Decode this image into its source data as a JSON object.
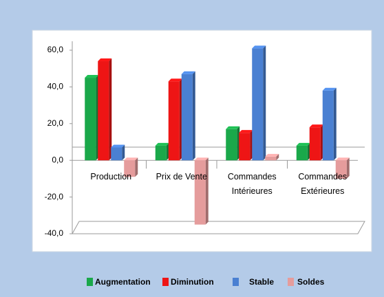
{
  "chart_data": {
    "type": "bar",
    "categories": [
      "Production",
      "Prix de Vente",
      "Commandes Intérieures",
      "Commandes Extérieures"
    ],
    "series": [
      {
        "name": "Augmentation",
        "color": "#1aa84a",
        "values": [
          45,
          8,
          17,
          8
        ]
      },
      {
        "name": "Diminution",
        "color": "#ee1515",
        "values": [
          54,
          43,
          15,
          18
        ]
      },
      {
        "name": "Stable",
        "color": "#4a80d2",
        "values": [
          7,
          47,
          61,
          38
        ]
      },
      {
        "name": "Soldes",
        "color": "#e59c9c",
        "values": [
          -9,
          -35,
          2,
          -10
        ]
      }
    ],
    "ylim": [
      -40,
      60
    ],
    "yticks": [
      {
        "value": -40,
        "label": "-40,0"
      },
      {
        "value": -20,
        "label": "-20,0"
      },
      {
        "value": 0,
        "label": "0,0"
      },
      {
        "value": 20,
        "label": "20,0"
      },
      {
        "value": 40,
        "label": "40,0"
      },
      {
        "value": 60,
        "label": "60,0"
      }
    ],
    "legend": "bottom"
  }
}
